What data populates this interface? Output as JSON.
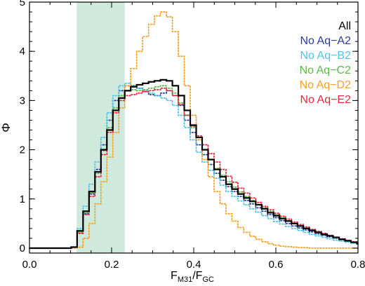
{
  "chart_data": {
    "type": "line",
    "title": "",
    "xlabel": {
      "main": "F",
      "sub1": "M31",
      "slash": "/F",
      "sub2": "GC"
    },
    "ylabel": "Φ",
    "xlim": [
      0.0,
      0.8
    ],
    "ylim": [
      -0.1,
      5.0
    ],
    "x_ticks": [
      "0.0",
      "0.2",
      "0.4",
      "0.6",
      "0.8"
    ],
    "y_ticks": [
      "0",
      "1",
      "2",
      "3",
      "4",
      "5"
    ],
    "shaded_region": {
      "x_range": [
        0.115,
        0.232
      ],
      "color": "#cfeadc"
    },
    "legend_position": "top-right",
    "step": 0.0145,
    "series": [
      {
        "name": "All",
        "color": "#000000",
        "dash": "solid",
        "x0": 0.0,
        "values": [
          0,
          0,
          0,
          0,
          0,
          0,
          0,
          0.02,
          0.35,
          0.75,
          1.15,
          1.55,
          2.0,
          2.4,
          2.8,
          3.05,
          3.2,
          3.28,
          3.32,
          3.35,
          3.38,
          3.4,
          3.42,
          3.4,
          3.3,
          3.1,
          2.8,
          2.5,
          2.25,
          2.0,
          1.8,
          1.6,
          1.45,
          1.3,
          1.2,
          1.1,
          1.02,
          0.95,
          0.88,
          0.8,
          0.72,
          0.66,
          0.6,
          0.55,
          0.5,
          0.45,
          0.4,
          0.36,
          0.32,
          0.28,
          0.25,
          0.22,
          0.18,
          0.15,
          0.12,
          0.09
        ]
      },
      {
        "name": "No Aq−A2",
        "color": "#2b3a98",
        "dash": "dotted",
        "x0": 0.0,
        "values": [
          0,
          0,
          0,
          0,
          0,
          0,
          0,
          0.02,
          0.3,
          0.7,
          1.1,
          1.6,
          2.1,
          2.6,
          3.0,
          3.2,
          3.3,
          3.3,
          3.25,
          3.18,
          3.12,
          3.1,
          3.15,
          3.2,
          3.1,
          2.9,
          2.6,
          2.35,
          2.1,
          1.9,
          1.7,
          1.52,
          1.38,
          1.25,
          1.15,
          1.05,
          0.97,
          0.9,
          0.82,
          0.75,
          0.68,
          0.62,
          0.56,
          0.5,
          0.45,
          0.41,
          0.37,
          0.33,
          0.29,
          0.26,
          0.23,
          0.2,
          0.17,
          0.14,
          0.11,
          0.09
        ]
      },
      {
        "name": "No Aq−B2",
        "color": "#4fc3e8",
        "dash": "dotted",
        "x0": 0.0,
        "values": [
          0,
          0,
          0,
          0,
          0,
          0,
          0,
          0.03,
          0.4,
          0.85,
          1.3,
          1.75,
          2.25,
          2.75,
          3.1,
          3.3,
          3.35,
          3.3,
          3.25,
          3.2,
          3.15,
          3.1,
          3.05,
          3.0,
          2.9,
          2.7,
          2.45,
          2.2,
          1.95,
          1.75,
          1.58,
          1.42,
          1.28,
          1.15,
          1.05,
          0.96,
          0.88,
          0.8,
          0.73,
          0.66,
          0.6,
          0.54,
          0.49,
          0.44,
          0.4,
          0.36,
          0.32,
          0.28,
          0.25,
          0.22,
          0.19,
          0.16,
          0.14,
          0.12,
          0.1,
          0.08
        ]
      },
      {
        "name": "No Aq−C2",
        "color": "#5cb846",
        "dash": "dotted",
        "x0": 0.0,
        "values": [
          0,
          0,
          0,
          0,
          0,
          0,
          0,
          0.02,
          0.32,
          0.72,
          1.12,
          1.52,
          1.98,
          2.45,
          2.85,
          3.1,
          3.2,
          3.22,
          3.2,
          3.22,
          3.25,
          3.28,
          3.3,
          3.25,
          3.15,
          2.95,
          2.7,
          2.45,
          2.2,
          2.0,
          1.8,
          1.62,
          1.48,
          1.35,
          1.24,
          1.14,
          1.05,
          0.97,
          0.89,
          0.82,
          0.75,
          0.68,
          0.62,
          0.56,
          0.5,
          0.45,
          0.4,
          0.36,
          0.32,
          0.28,
          0.25,
          0.21,
          0.18,
          0.15,
          0.12,
          0.1
        ]
      },
      {
        "name": "No Aq−D2",
        "color": "#f5a027",
        "dash": "dotted",
        "x0": 0.0,
        "values": [
          0,
          0,
          0,
          0,
          0,
          0,
          0,
          0,
          0.02,
          0.2,
          0.5,
          0.9,
          1.35,
          1.85,
          2.35,
          2.85,
          3.3,
          3.65,
          4.0,
          4.3,
          4.55,
          4.72,
          4.8,
          4.7,
          4.4,
          3.9,
          3.3,
          2.7,
          2.2,
          1.8,
          1.45,
          1.15,
          0.9,
          0.7,
          0.55,
          0.42,
          0.32,
          0.24,
          0.18,
          0.13,
          0.09,
          0.06,
          0.04,
          0.03,
          0.02,
          0.01,
          0.01,
          0,
          0,
          0,
          0,
          0,
          0,
          0,
          0,
          0
        ]
      },
      {
        "name": "No Aq−E2",
        "color": "#e8283c",
        "dash": "dotted",
        "x0": 0.0,
        "values": [
          0,
          0,
          0,
          0,
          0,
          0,
          0,
          0.02,
          0.3,
          0.68,
          1.05,
          1.45,
          1.9,
          2.35,
          2.75,
          3.0,
          3.1,
          3.12,
          3.15,
          3.18,
          3.2,
          3.22,
          3.25,
          3.2,
          3.1,
          2.92,
          2.7,
          2.48,
          2.28,
          2.1,
          1.92,
          1.75,
          1.6,
          1.46,
          1.34,
          1.22,
          1.12,
          1.02,
          0.93,
          0.85,
          0.78,
          0.71,
          0.65,
          0.59,
          0.53,
          0.48,
          0.43,
          0.38,
          0.34,
          0.3,
          0.26,
          0.22,
          0.19,
          0.16,
          0.13,
          0.1
        ]
      }
    ]
  }
}
